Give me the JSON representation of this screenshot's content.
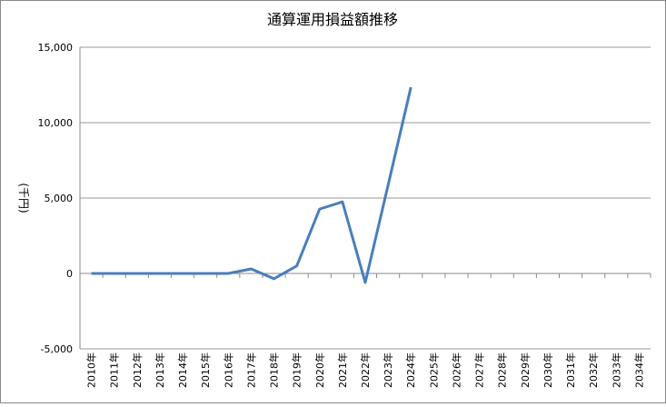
{
  "chart_data": {
    "type": "line",
    "title": "通算運用損益額推移",
    "y_label": "(千円)",
    "categories": [
      "2010年",
      "2011年",
      "2012年",
      "2013年",
      "2014年",
      "2015年",
      "2016年",
      "2017年",
      "2018年",
      "2019年",
      "2020年",
      "2021年",
      "2022年",
      "2023年",
      "2024年",
      "2025年",
      "2026年",
      "2027年",
      "2028年",
      "2029年",
      "2030年",
      "2031年",
      "2032年",
      "2033年",
      "2034年"
    ],
    "series": [
      {
        "color": "#4a7ebb",
        "values": [
          0,
          0,
          0,
          0,
          0,
          0,
          0,
          300,
          -350,
          500,
          4270,
          4750,
          -600,
          5850,
          12350,
          null,
          null,
          null,
          null,
          null,
          null,
          null,
          null,
          null,
          null
        ]
      }
    ],
    "ylim": [
      -5000,
      15000
    ],
    "yticks": [
      {
        "value": -5000,
        "label": "-5,000"
      },
      0,
      {
        "value": 5000,
        "label": "5,000"
      },
      {
        "value": 10000,
        "label": "10,000"
      },
      {
        "value": 15000,
        "label": "15,000"
      }
    ],
    "grid": true
  }
}
